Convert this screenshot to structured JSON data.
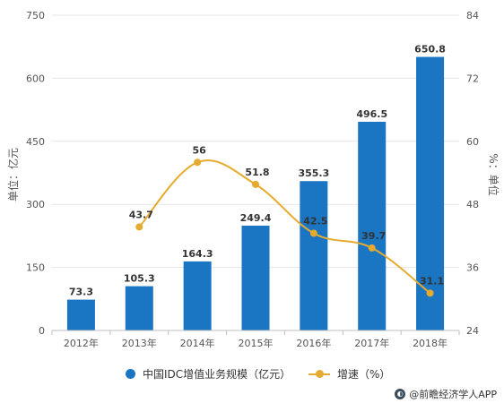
{
  "chart_data": {
    "type": "bar",
    "categories": [
      "2012年",
      "2013年",
      "2014年",
      "2015年",
      "2016年",
      "2017年",
      "2018年"
    ],
    "series": [
      {
        "name": "中国IDC增值业务规模（亿元）",
        "type": "bar",
        "axis": "left",
        "values": [
          73.3,
          105.3,
          164.3,
          249.4,
          355.3,
          496.5,
          650.8
        ],
        "color": "#1a75c2"
      },
      {
        "name": "增速（%）",
        "type": "line",
        "axis": "right",
        "values": [
          null,
          43.7,
          56,
          51.8,
          42.5,
          39.7,
          31.1
        ],
        "color": "#e6ab2e"
      }
    ],
    "y_left": {
      "label": "单位：亿元",
      "range": [
        0,
        750
      ],
      "ticks": [
        0,
        150,
        300,
        450,
        600,
        750
      ]
    },
    "y_right": {
      "label": "%：单位",
      "range": [
        24,
        84
      ],
      "ticks": [
        24,
        36,
        48,
        60,
        72,
        84
      ]
    },
    "bar_labels": [
      "73.3",
      "105.3",
      "164.3",
      "249.4",
      "355.3",
      "496.5",
      "650.8"
    ],
    "line_labels": [
      "",
      "43.7",
      "56",
      "51.8",
      "42.5",
      "39.7",
      "31.1"
    ],
    "grid": true,
    "legend_position": "bottom"
  },
  "legend": {
    "bar": "中国IDC增值业务规模（亿元）",
    "line": "增速（%）"
  },
  "source": "@前瞻经济学人APP"
}
